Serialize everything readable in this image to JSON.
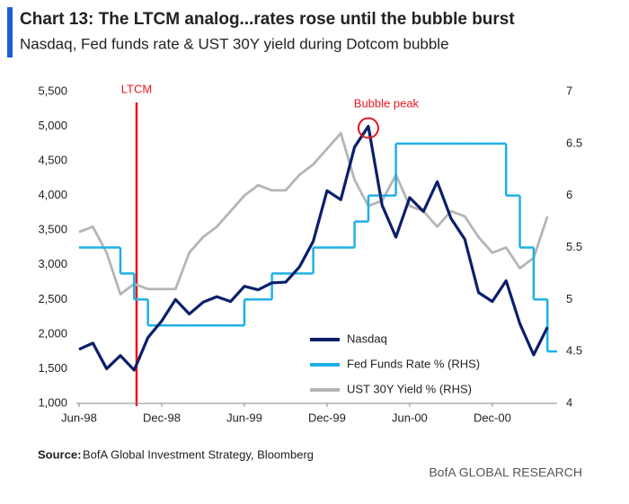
{
  "chart_data": {
    "type": "line",
    "title": "Chart 13: The LTCM analog...rates rose until the bubble burst",
    "subtitle": "Nasdaq, Fed funds rate & UST 30Y yield during Dotcom bubble",
    "categories": [
      "Jun-98",
      null,
      null,
      null,
      null,
      null,
      "Dec-98",
      null,
      null,
      null,
      null,
      null,
      "Jun-99",
      null,
      null,
      null,
      null,
      null,
      "Dec-99",
      null,
      null,
      null,
      null,
      null,
      "Jun-00",
      null,
      null,
      null,
      null,
      null,
      "Dec-00",
      null,
      null,
      null,
      null
    ],
    "series": [
      {
        "name": "Nasdaq",
        "color": "#0b1f6b",
        "values": [
          1780,
          1870,
          1500,
          1690,
          1480,
          1950,
          2190,
          2500,
          2290,
          2460,
          2540,
          2470,
          2690,
          2640,
          2740,
          2750,
          2970,
          3340,
          4070,
          3940,
          4700,
          5000,
          3860,
          3400,
          3970,
          3770,
          4200,
          3670,
          3370,
          2600,
          2470,
          2770,
          2150,
          1700,
          2100
        ]
      },
      {
        "name": "Fed Funds Rate % (RHS)",
        "color": "#1fb0e6",
        "axis": "y2",
        "style": "step",
        "values": [
          5.5,
          5.5,
          5.5,
          5.25,
          5.0,
          4.75,
          4.75,
          4.75,
          4.75,
          4.75,
          4.75,
          4.75,
          5.0,
          5.0,
          5.25,
          5.25,
          5.25,
          5.5,
          5.5,
          5.5,
          5.75,
          6.0,
          6.0,
          6.5,
          6.5,
          6.5,
          6.5,
          6.5,
          6.5,
          6.5,
          6.5,
          6.0,
          5.5,
          5.0,
          4.5
        ]
      },
      {
        "name": "UST 30Y Yield % (RHS)",
        "color": "#b5b5b5",
        "axis": "y2",
        "values": [
          5.65,
          5.7,
          5.45,
          5.05,
          5.15,
          5.1,
          5.1,
          5.1,
          5.45,
          5.6,
          5.7,
          5.85,
          6.0,
          6.1,
          6.05,
          6.05,
          6.2,
          6.3,
          6.45,
          6.6,
          6.15,
          5.9,
          5.95,
          6.2,
          5.9,
          5.85,
          5.7,
          5.85,
          5.8,
          5.6,
          5.45,
          5.5,
          5.3,
          5.4,
          5.8
        ]
      }
    ],
    "ylim": [
      1000,
      5500
    ],
    "yticks": [
      {
        "value": 1000,
        "label": "1,000"
      },
      {
        "value": 1500,
        "label": "1,500"
      },
      {
        "value": 2000,
        "label": "2,000"
      },
      {
        "value": 2500,
        "label": "2,500"
      },
      {
        "value": 3000,
        "label": "3,000"
      },
      {
        "value": 3500,
        "label": "3,500"
      },
      {
        "value": 4000,
        "label": "4,000"
      },
      {
        "value": 4500,
        "label": "4,500"
      },
      {
        "value": 5000,
        "label": "5,000"
      },
      {
        "value": 5500,
        "label": "5,500"
      }
    ],
    "y2lim": [
      4,
      7
    ],
    "y2ticks": [
      4,
      4.5,
      5,
      5.5,
      6,
      6.5,
      7
    ],
    "annotations": [
      "LTCM",
      "Bubble peak"
    ],
    "legend": "bottom-center",
    "source_label": "Source:",
    "source": "BofA Global Investment Strategy, Bloomberg",
    "footer": "BofA GLOBAL RESEARCH"
  }
}
